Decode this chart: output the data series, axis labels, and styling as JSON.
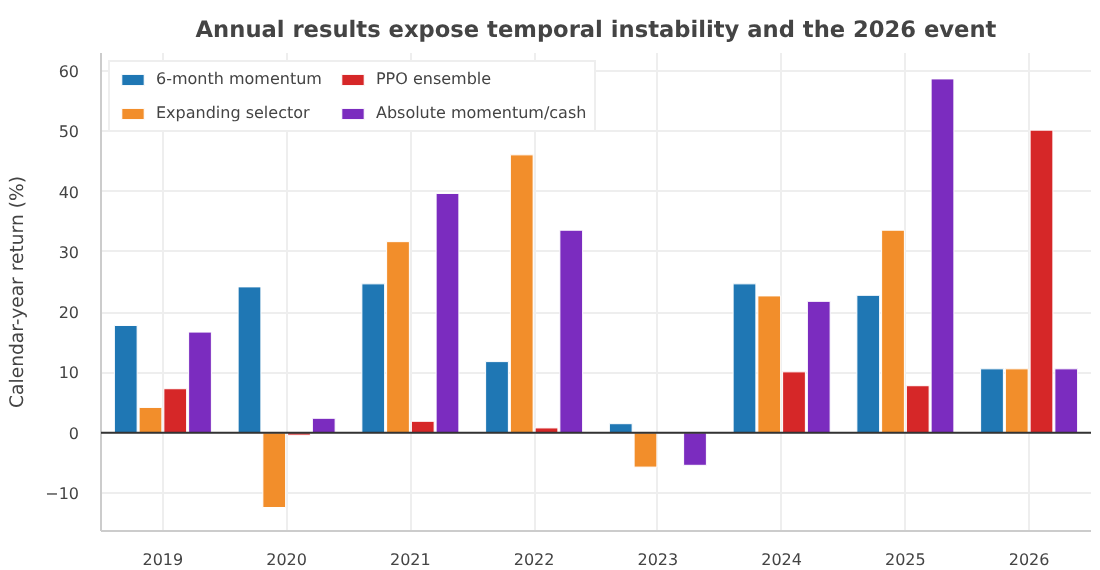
{
  "chart_data": {
    "type": "bar",
    "title": "Annual results expose temporal instability and the 2026 event",
    "ylabel": "Calendar-year return (%)",
    "categories": [
      "2019",
      "2020",
      "2021",
      "2022",
      "2023",
      "2024",
      "2025",
      "2026"
    ],
    "series": [
      {
        "name": "6-month momentum",
        "color": "#1f77b4",
        "values": [
          17.8,
          24.2,
          24.7,
          11.8,
          1.5,
          24.7,
          22.8,
          10.6
        ]
      },
      {
        "name": "Expanding selector",
        "color": "#f28e2b",
        "values": [
          4.2,
          -12.4,
          31.7,
          46.1,
          -5.7,
          22.7,
          33.6,
          10.6
        ]
      },
      {
        "name": "PPO ensemble",
        "color": "#d62728",
        "values": [
          7.3,
          -0.4,
          1.9,
          0.8,
          null,
          10.1,
          7.8,
          50.2
        ]
      },
      {
        "name": "Absolute momentum/cash",
        "color": "#7b2cbf",
        "values": [
          16.7,
          2.4,
          39.7,
          33.6,
          -5.4,
          21.8,
          58.7,
          10.6
        ]
      }
    ],
    "ylim": [
      -16.3,
      63
    ],
    "yticks": [
      -10,
      0,
      10,
      20,
      30,
      40,
      50,
      60
    ],
    "grid": true,
    "legend": "top left",
    "ref_lines": [
      {
        "axis": "y",
        "value": 0,
        "color": "#333333"
      }
    ]
  }
}
